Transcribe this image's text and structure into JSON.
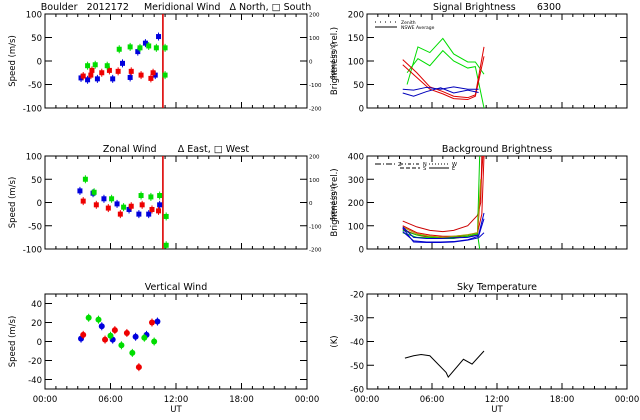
{
  "chart_data": [
    {
      "id": "meridional",
      "type": "scatter",
      "title": "Boulder   2012172     Meridional Wind   Δ North, □ South",
      "xlabel": "",
      "ylabel": "Speed (m/s)",
      "ylabel_right": "Speed (m/s)",
      "xlim": [
        0,
        24
      ],
      "ylim": [
        -100,
        100
      ],
      "yticks": [
        -100,
        -50,
        0,
        50,
        100
      ],
      "yticks_right": [
        "-200",
        "-100",
        "0",
        "100",
        "200"
      ],
      "vline": {
        "x": 10.8,
        "color": "#dd0000"
      },
      "series": [
        {
          "name": "blue",
          "color": "#0000dd",
          "points": [
            [
              3.3,
              -36
            ],
            [
              3.9,
              -40
            ],
            [
              4.8,
              -38
            ],
            [
              6.2,
              -38
            ],
            [
              7.1,
              -5
            ],
            [
              7.8,
              -35
            ],
            [
              8.5,
              20
            ],
            [
              9.2,
              38
            ],
            [
              10.4,
              52
            ],
            [
              10.1,
              -30
            ]
          ]
        },
        {
          "name": "red",
          "color": "#ee0000",
          "points": [
            [
              3.5,
              -32
            ],
            [
              4.2,
              -30
            ],
            [
              4.3,
              -20
            ],
            [
              5.2,
              -25
            ],
            [
              5.9,
              -20
            ],
            [
              6.7,
              -22
            ],
            [
              7.9,
              -22
            ],
            [
              8.8,
              -30
            ],
            [
              9.7,
              -37
            ],
            [
              9.9,
              -25
            ]
          ]
        },
        {
          "name": "green",
          "color": "#00dd00",
          "points": [
            [
              3.9,
              -10
            ],
            [
              4.6,
              -8
            ],
            [
              5.7,
              -10
            ],
            [
              6.8,
              25
            ],
            [
              7.8,
              30
            ],
            [
              8.7,
              28
            ],
            [
              9.5,
              32
            ],
            [
              10.2,
              28
            ],
            [
              11.0,
              28
            ],
            [
              11.0,
              -30
            ]
          ]
        }
      ]
    },
    {
      "id": "signal",
      "type": "line",
      "title": "Signal Brightness       6300",
      "ylabel": "Brightness (rel.)",
      "xlim": [
        0,
        24
      ],
      "ylim": [
        0,
        200
      ],
      "yticks": [
        0,
        50,
        100,
        150,
        200
      ],
      "legend": {
        "position": "top-left",
        "entries": [
          {
            "label": "Zenith",
            "style": "dotted"
          },
          {
            "label": "NSWE Average",
            "style": "solid"
          }
        ]
      },
      "series": [
        {
          "name": "green-1",
          "color": "#00dd00",
          "x": [
            3.7,
            4.7,
            5.8,
            7.0,
            8.0,
            9.3,
            10.0,
            10.8
          ],
          "y": [
            50,
            130,
            118,
            148,
            115,
            98,
            98,
            72
          ]
        },
        {
          "name": "green-2",
          "color": "#00dd00",
          "x": [
            3.7,
            4.7,
            5.8,
            7.0,
            8.0,
            9.3,
            10.0,
            10.8
          ],
          "y": [
            75,
            105,
            90,
            122,
            100,
            85,
            88,
            0
          ]
        },
        {
          "name": "red-1",
          "color": "#dd0000",
          "x": [
            3.3,
            4.6,
            5.8,
            7.0,
            8.0,
            9.3,
            10.0,
            10.8
          ],
          "y": [
            103,
            75,
            45,
            35,
            25,
            22,
            28,
            130
          ]
        },
        {
          "name": "red-2",
          "color": "#dd0000",
          "x": [
            3.3,
            4.6,
            5.8,
            7.0,
            8.0,
            9.3,
            10.0,
            10.8
          ],
          "y": [
            92,
            65,
            40,
            30,
            20,
            18,
            25,
            110
          ]
        },
        {
          "name": "blue-1",
          "color": "#0000bb",
          "x": [
            3.3,
            4.3,
            5.5,
            6.8,
            8.0,
            9.3,
            10.3
          ],
          "y": [
            40,
            38,
            44,
            40,
            45,
            40,
            40
          ]
        },
        {
          "name": "blue-2",
          "color": "#0000bb",
          "x": [
            3.3,
            4.3,
            5.5,
            6.8,
            8.0,
            9.3,
            10.3
          ],
          "y": [
            32,
            25,
            35,
            43,
            32,
            38,
            33
          ]
        }
      ]
    },
    {
      "id": "zonal",
      "type": "scatter",
      "title": "Zonal Wind       Δ East, □ West",
      "ylabel": "Speed (m/s)",
      "ylabel_right": "Speed (m/s)",
      "xlim": [
        0,
        24
      ],
      "ylim": [
        -100,
        100
      ],
      "yticks": [
        -100,
        -50,
        0,
        50,
        100
      ],
      "yticks_right": [
        "-200",
        "-100",
        "0",
        "100",
        "200"
      ],
      "vline": {
        "x": 10.8,
        "color": "#dd0000"
      },
      "series": [
        {
          "name": "blue",
          "color": "#0000dd",
          "points": [
            [
              3.2,
              25
            ],
            [
              4.4,
              20
            ],
            [
              5.4,
              8
            ],
            [
              6.6,
              -3
            ],
            [
              7.7,
              -15
            ],
            [
              8.6,
              -25
            ],
            [
              9.5,
              -25
            ],
            [
              10.5,
              -5
            ]
          ]
        },
        {
          "name": "red",
          "color": "#ee0000",
          "points": [
            [
              3.5,
              3
            ],
            [
              4.7,
              -5
            ],
            [
              5.8,
              -12
            ],
            [
              6.9,
              -25
            ],
            [
              7.9,
              -8
            ],
            [
              8.9,
              -5
            ],
            [
              9.8,
              -15
            ],
            [
              10.4,
              -18
            ]
          ]
        },
        {
          "name": "green",
          "color": "#00dd00",
          "points": [
            [
              3.7,
              50
            ],
            [
              4.5,
              22
            ],
            [
              6.1,
              8
            ],
            [
              7.2,
              -10
            ],
            [
              8.8,
              15
            ],
            [
              9.7,
              12
            ],
            [
              10.5,
              15
            ],
            [
              11.1,
              -30
            ],
            [
              11.1,
              -92
            ]
          ]
        }
      ]
    },
    {
      "id": "background",
      "type": "line",
      "title": "Background Brightness",
      "ylabel": "Brightness (rel.)",
      "xlim": [
        0,
        24
      ],
      "ylim": [
        0,
        400
      ],
      "yticks": [
        0,
        100,
        200,
        300,
        400
      ],
      "legend": {
        "position": "top",
        "entries": [
          {
            "label": "Z"
          },
          {
            "label": "N"
          },
          {
            "label": "S"
          },
          {
            "label": "W"
          },
          {
            "label": "E"
          }
        ]
      },
      "series": [
        {
          "name": "red-1",
          "color": "#cc0000",
          "x": [
            3.3,
            4.6,
            5.8,
            7.0,
            8.0,
            9.3,
            10.2,
            10.5,
            10.6
          ],
          "y": [
            120,
            95,
            80,
            75,
            80,
            100,
            145,
            200,
            400
          ]
        },
        {
          "name": "red-2",
          "color": "#dd0000",
          "x": [
            3.3,
            4.6,
            5.8,
            7.0,
            8.0,
            9.3,
            10.2,
            10.6,
            10.8
          ],
          "y": [
            100,
            70,
            60,
            55,
            55,
            60,
            70,
            150,
            400
          ]
        },
        {
          "name": "red-3",
          "color": "#dd0000",
          "x": [
            3.3,
            4.6,
            5.8,
            7.0,
            8.0,
            9.3,
            10.2,
            10.7
          ],
          "y": [
            85,
            60,
            50,
            48,
            50,
            55,
            60,
            400
          ]
        },
        {
          "name": "green-1",
          "color": "#00cc00",
          "x": [
            3.3,
            4.6,
            5.8,
            7.0,
            8.0,
            9.3,
            10.2,
            10.4
          ],
          "y": [
            80,
            60,
            55,
            50,
            52,
            60,
            70,
            400
          ]
        },
        {
          "name": "green-2",
          "color": "#00cc00",
          "x": [
            3.3,
            4.6,
            5.8,
            7.0,
            8.0,
            9.3,
            10.2,
            10.4
          ],
          "y": [
            70,
            50,
            50,
            45,
            45,
            55,
            65,
            0
          ]
        },
        {
          "name": "olive",
          "color": "#aa9900",
          "x": [
            3.3,
            4.6,
            5.8,
            7.0,
            8.0,
            9.3,
            10.2,
            10.5
          ],
          "y": [
            95,
            65,
            55,
            50,
            55,
            62,
            70,
            300
          ]
        },
        {
          "name": "blue-1",
          "color": "#0000cc",
          "x": [
            3.3,
            4.3,
            5.5,
            6.8,
            8.0,
            9.3,
            10.3,
            10.8
          ],
          "y": [
            95,
            50,
            45,
            45,
            48,
            50,
            60,
            155
          ]
        },
        {
          "name": "blue-2",
          "color": "#0000cc",
          "x": [
            3.3,
            4.3,
            5.5,
            6.8,
            8.0,
            9.3,
            10.3,
            10.8
          ],
          "y": [
            75,
            35,
            30,
            30,
            32,
            40,
            55,
            130
          ]
        },
        {
          "name": "blue-3",
          "color": "#0000cc",
          "x": [
            3.3,
            4.3,
            5.5,
            6.8,
            8.0,
            9.3,
            10.3,
            10.8
          ],
          "y": [
            90,
            30,
            28,
            28,
            30,
            38,
            48,
            70
          ]
        }
      ]
    },
    {
      "id": "vertical",
      "type": "scatter",
      "title": "Vertical Wind",
      "xlabel": "UT",
      "ylabel": "Speed (m/s)",
      "xlim": [
        0,
        24
      ],
      "ylim": [
        -50,
        50
      ],
      "yticks": [
        -40,
        -20,
        0,
        20,
        40
      ],
      "xticks": [
        "00:00",
        "06:00",
        "12:00",
        "18:00",
        "00:00"
      ],
      "series": [
        {
          "name": "blue",
          "color": "#0000dd",
          "points": [
            [
              3.3,
              3
            ],
            [
              5.2,
              16
            ],
            [
              6.2,
              2
            ],
            [
              8.3,
              5
            ],
            [
              9.3,
              7
            ],
            [
              10.3,
              21
            ]
          ]
        },
        {
          "name": "red",
          "color": "#ee0000",
          "points": [
            [
              3.5,
              7
            ],
            [
              5.5,
              2
            ],
            [
              6.4,
              12
            ],
            [
              7.5,
              9
            ],
            [
              8.6,
              -27
            ],
            [
              9.8,
              20
            ]
          ]
        },
        {
          "name": "green",
          "color": "#00dd00",
          "points": [
            [
              4.0,
              25
            ],
            [
              4.9,
              23
            ],
            [
              6.0,
              6
            ],
            [
              7.0,
              -4
            ],
            [
              8.0,
              -12
            ],
            [
              9.1,
              4
            ],
            [
              10.0,
              0
            ]
          ]
        }
      ]
    },
    {
      "id": "skytemp",
      "type": "line",
      "title": "Sky Temperature",
      "xlabel": "UT",
      "ylabel": "(K)",
      "xlim": [
        0,
        24
      ],
      "ylim": [
        -60,
        -20
      ],
      "yticks": [
        -60,
        -50,
        -40,
        -30,
        -20
      ],
      "xticks": [
        "00:00",
        "06:00",
        "12:00",
        "18:00",
        "00:00"
      ],
      "series": [
        {
          "name": "sky",
          "color": "#000000",
          "x": [
            3.5,
            4.3,
            5.0,
            5.8,
            7.3,
            7.5,
            8.9,
            9.7,
            10.8
          ],
          "y": [
            -47,
            -46,
            -45.5,
            -46,
            -53,
            -55,
            -47.5,
            -49.5,
            -44
          ]
        }
      ]
    }
  ]
}
